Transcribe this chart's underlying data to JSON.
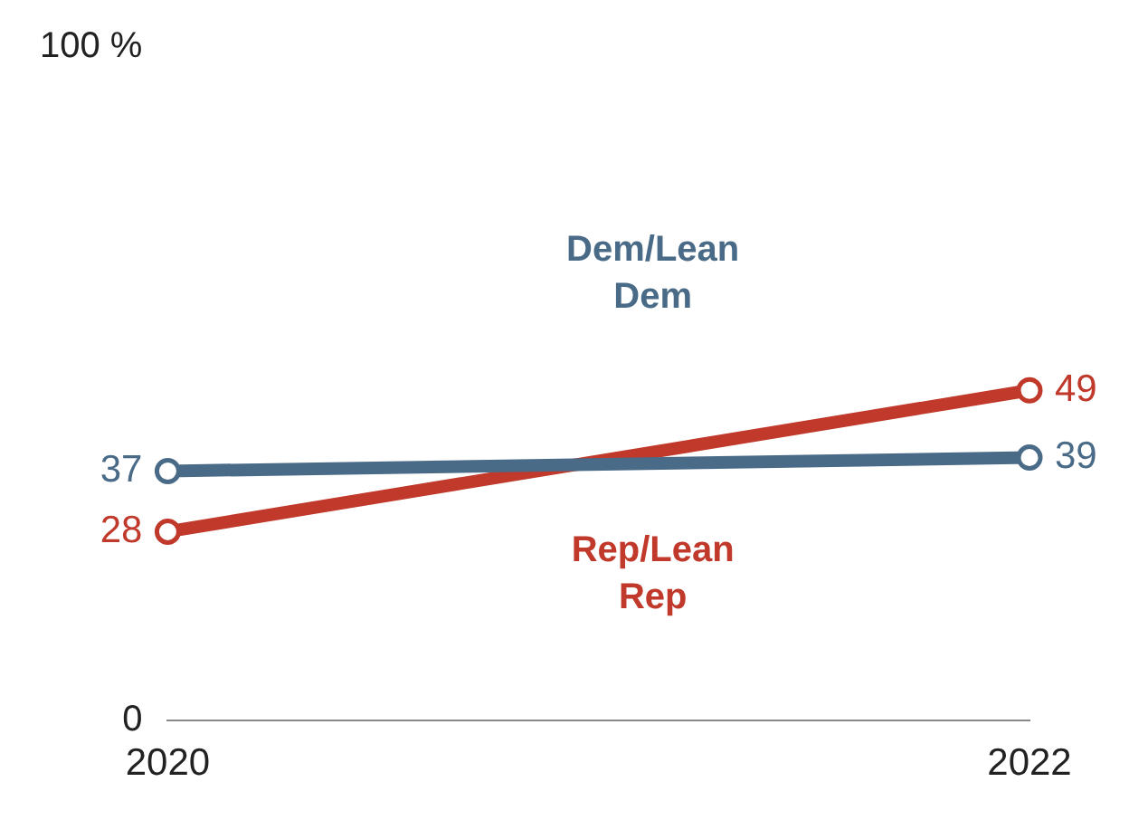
{
  "chart_data": {
    "type": "line",
    "categories": [
      "2020",
      "2022"
    ],
    "series": [
      {
        "name": "Dem/Lean Dem",
        "color": "#4a6b88",
        "values": [
          37,
          39
        ]
      },
      {
        "name": "Rep/Lean Rep",
        "color": "#c0392b",
        "values": [
          28,
          49
        ]
      }
    ],
    "ylim": [
      0,
      100
    ],
    "yticks": [
      0,
      {
        "value": 100,
        "label": "100 %"
      }
    ],
    "grid": false,
    "legend": false,
    "marker": "circle",
    "line_style": "solid",
    "data_labels": true
  }
}
